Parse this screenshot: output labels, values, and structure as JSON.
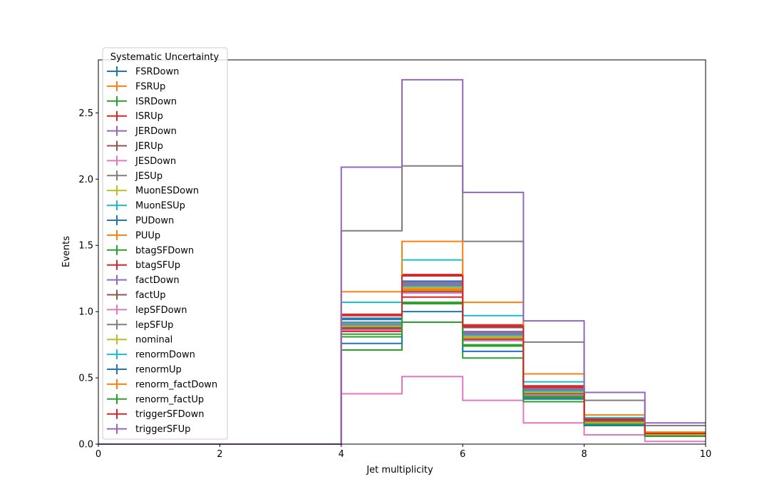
{
  "chart_data": {
    "type": "line",
    "drawstyle": "steps-post",
    "title": "",
    "xlabel": "Jet multiplicity",
    "ylabel": "Events",
    "xlim": [
      0,
      10
    ],
    "ylim": [
      0,
      2.9
    ],
    "x_ticks": [
      "0",
      "2",
      "4",
      "6",
      "8",
      "10"
    ],
    "y_ticks": [
      "0.0",
      "0.5",
      "1.0",
      "1.5",
      "2.0",
      "2.5"
    ],
    "bin_edges": [
      0,
      1,
      2,
      3,
      4,
      5,
      6,
      7,
      8,
      9,
      10
    ],
    "legend": {
      "title": "Systematic Uncertainty",
      "position": "upper-left"
    },
    "grid": false,
    "series": [
      {
        "name": "FSRDown",
        "color": "#1f77b4",
        "values": [
          0,
          0,
          0,
          0,
          0.95,
          1.22,
          0.83,
          0.4,
          0.17,
          0.07
        ]
      },
      {
        "name": "FSRUp",
        "color": "#ff7f0e",
        "values": [
          0,
          0,
          0,
          0,
          0.87,
          1.17,
          0.8,
          0.38,
          0.16,
          0.07
        ]
      },
      {
        "name": "ISRDown",
        "color": "#2ca02c",
        "values": [
          0,
          0,
          0,
          0,
          0.81,
          1.06,
          0.75,
          0.35,
          0.15,
          0.06
        ]
      },
      {
        "name": "ISRUp",
        "color": "#d62728",
        "values": [
          0,
          0,
          0,
          0,
          0.85,
          1.11,
          0.78,
          0.37,
          0.15,
          0.06
        ]
      },
      {
        "name": "JERDown",
        "color": "#9467bd",
        "values": [
          0,
          0,
          0,
          0,
          0.9,
          1.22,
          0.85,
          0.42,
          0.18,
          0.08
        ]
      },
      {
        "name": "JERUp",
        "color": "#8c564b",
        "values": [
          0,
          0,
          0,
          0,
          0.88,
          1.16,
          0.88,
          0.43,
          0.19,
          0.08
        ]
      },
      {
        "name": "JESDown",
        "color": "#e377c2",
        "values": [
          0,
          0,
          0,
          0,
          0.38,
          0.51,
          0.33,
          0.16,
          0.07,
          0.02
        ]
      },
      {
        "name": "JESUp",
        "color": "#7f7f7f",
        "values": [
          0,
          0,
          0,
          0,
          1.61,
          2.1,
          1.53,
          0.77,
          0.33,
          0.14
        ]
      },
      {
        "name": "MuonESDown",
        "color": "#bcbd22",
        "values": [
          0,
          0,
          0,
          0,
          0.89,
          1.18,
          0.81,
          0.39,
          0.16,
          0.07
        ]
      },
      {
        "name": "MuonESUp",
        "color": "#17becf",
        "values": [
          0,
          0,
          0,
          0,
          0.91,
          1.19,
          0.82,
          0.4,
          0.17,
          0.07
        ]
      },
      {
        "name": "PUDown",
        "color": "#1f77b4",
        "values": [
          0,
          0,
          0,
          0,
          0.94,
          1.23,
          0.84,
          0.41,
          0.17,
          0.07
        ]
      },
      {
        "name": "PUUp",
        "color": "#ff7f0e",
        "values": [
          0,
          0,
          0,
          0,
          0.86,
          1.16,
          0.79,
          0.38,
          0.16,
          0.07
        ]
      },
      {
        "name": "btagSFDown",
        "color": "#2ca02c",
        "values": [
          0,
          0,
          0,
          0,
          0.71,
          0.92,
          0.65,
          0.32,
          0.14,
          0.06
        ]
      },
      {
        "name": "btagSFUp",
        "color": "#d62728",
        "values": [
          0,
          0,
          0,
          0,
          0.98,
          1.28,
          0.9,
          0.44,
          0.19,
          0.08
        ]
      },
      {
        "name": "factDown",
        "color": "#9467bd",
        "values": [
          0,
          0,
          0,
          0,
          0.92,
          1.2,
          0.83,
          0.41,
          0.17,
          0.07
        ]
      },
      {
        "name": "factUp",
        "color": "#8c564b",
        "values": [
          0,
          0,
          0,
          0,
          0.87,
          1.15,
          0.79,
          0.38,
          0.16,
          0.07
        ]
      },
      {
        "name": "lepSFDown",
        "color": "#e377c2",
        "values": [
          0,
          0,
          0,
          0,
          0.86,
          1.14,
          0.78,
          0.37,
          0.16,
          0.07
        ]
      },
      {
        "name": "lepSFUp",
        "color": "#7f7f7f",
        "values": [
          0,
          0,
          0,
          0,
          0.92,
          1.21,
          0.84,
          0.41,
          0.17,
          0.07
        ]
      },
      {
        "name": "nominal",
        "color": "#bcbd22",
        "values": [
          0,
          0,
          0,
          0,
          0.89,
          1.18,
          0.81,
          0.39,
          0.16,
          0.07
        ]
      },
      {
        "name": "renormDown",
        "color": "#17becf",
        "values": [
          0,
          0,
          0,
          0,
          1.07,
          1.39,
          0.97,
          0.47,
          0.2,
          0.09
        ]
      },
      {
        "name": "renormUp",
        "color": "#1f77b4",
        "values": [
          0,
          0,
          0,
          0,
          0.76,
          1.0,
          0.7,
          0.34,
          0.14,
          0.06
        ]
      },
      {
        "name": "renorm_factDown",
        "color": "#ff7f0e",
        "values": [
          0,
          0,
          0,
          0,
          1.15,
          1.53,
          1.07,
          0.53,
          0.22,
          0.09
        ]
      },
      {
        "name": "renorm_factUp",
        "color": "#2ca02c",
        "values": [
          0,
          0,
          0,
          0,
          0.83,
          1.07,
          0.74,
          0.36,
          0.15,
          0.06
        ]
      },
      {
        "name": "triggerSFDown",
        "color": "#d62728",
        "values": [
          0,
          0,
          0,
          0,
          0.97,
          1.27,
          0.89,
          0.43,
          0.18,
          0.08
        ]
      },
      {
        "name": "triggerSFUp",
        "color": "#9467bd",
        "values": [
          0,
          0,
          0,
          0,
          2.09,
          2.75,
          1.9,
          0.93,
          0.39,
          0.16
        ]
      }
    ]
  }
}
